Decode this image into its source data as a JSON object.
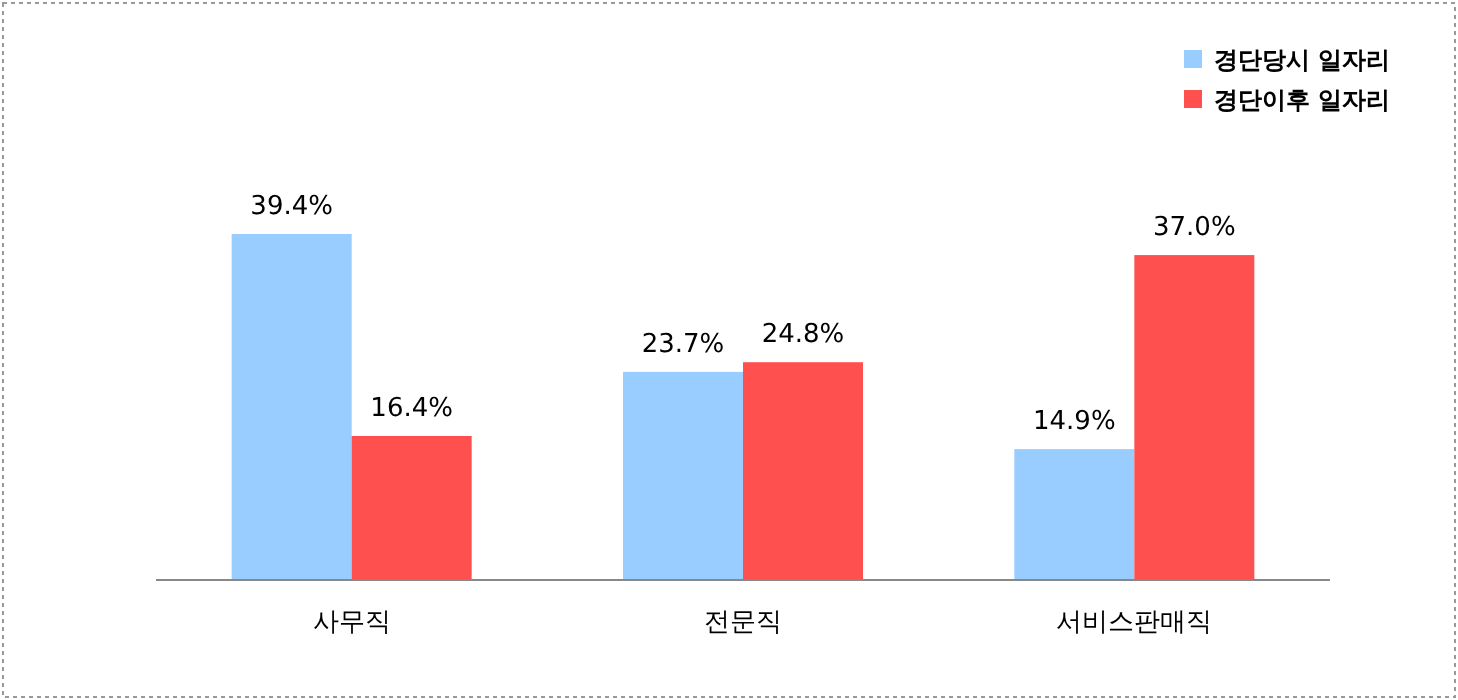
{
  "chart_data": {
    "type": "bar",
    "categories": [
      "사무직",
      "전문직",
      "서비스판매직"
    ],
    "series": [
      {
        "name": "경단당시 일자리",
        "color": "#99ccff",
        "values": [
          39.4,
          23.7,
          14.9
        ],
        "value_labels": [
          "39.4%",
          "23.7%",
          "14.9%"
        ]
      },
      {
        "name": "경단이후 일자리",
        "color": "#ff5050",
        "values": [
          16.4,
          24.8,
          37.0
        ],
        "value_labels": [
          "16.4%",
          "24.8%",
          "37.0%"
        ]
      }
    ],
    "legend": "top right"
  }
}
